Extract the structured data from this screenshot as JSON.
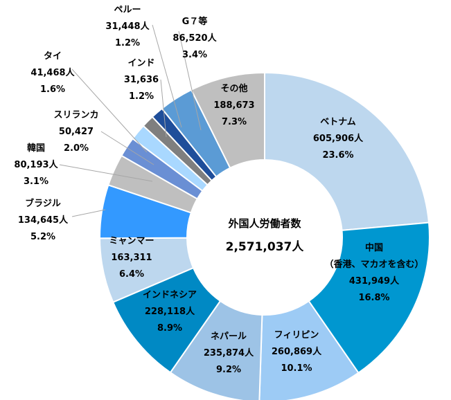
{
  "chart_data": {
    "type": "donut",
    "center_title": "外国人労働者数",
    "center_total": "2,571,037人",
    "slices": [
      {
        "name": "ベトナム",
        "sub": "",
        "value_label": "605,906人",
        "pct_label": "23.6%",
        "value": 605906,
        "color": "#BDD7EE",
        "text_color": "#000000"
      },
      {
        "name": "中国",
        "sub": "（香港、マカオを含む）",
        "value_label": "431,949人",
        "pct_label": "16.8%",
        "value": 431949,
        "color": "#0097D0",
        "text_color": "#000000"
      },
      {
        "name": "フィリピン",
        "sub": "",
        "value_label": "260,869人",
        "pct_label": "10.1%",
        "value": 260869,
        "color": "#9DCBF5",
        "text_color": "#000000"
      },
      {
        "name": "ネパール",
        "sub": "",
        "value_label": "235,874人",
        "pct_label": "9.2%",
        "value": 235874,
        "color": "#9DC3E6",
        "text_color": "#000000"
      },
      {
        "name": "インドネシア",
        "sub": "",
        "value_label": "228,118人",
        "pct_label": "8.9%",
        "value": 228118,
        "color": "#0089C4",
        "text_color": "#000000"
      },
      {
        "name": "ミャンマー",
        "sub": "",
        "value_label": "163,311",
        "pct_label": "6.4%",
        "value": 163311,
        "color": "#BDD7EE",
        "text_color": "#000000"
      },
      {
        "name": "ブラジル",
        "sub": "",
        "value_label": "134,645人",
        "pct_label": "5.2%",
        "value": 134645,
        "color": "#3399FF",
        "text_color": "#000000"
      },
      {
        "name": "韓国",
        "sub": "",
        "value_label": "80,193人",
        "pct_label": "3.1%",
        "value": 80193,
        "color": "#BFBFBF",
        "text_color": "#000000"
      },
      {
        "name": "スリランカ",
        "sub": "",
        "value_label": "50,427",
        "pct_label": "2.0%",
        "value": 50427,
        "color": "#6A8FD4",
        "text_color": "#000000"
      },
      {
        "name": "タイ",
        "sub": "",
        "value_label": "41,468人",
        "pct_label": "1.6%",
        "value": 41468,
        "color": "#A9D8FF",
        "text_color": "#000000"
      },
      {
        "name": "インド",
        "sub": "",
        "value_label": "31,636",
        "pct_label": "1.2%",
        "value": 31636,
        "color": "#7F7F7F",
        "text_color": "#000000"
      },
      {
        "name": "ペルー",
        "sub": "",
        "value_label": "31,448人",
        "pct_label": "1.2%",
        "value": 31448,
        "color": "#1F4E9A",
        "text_color": "#000000"
      },
      {
        "name": "G７等",
        "sub": "",
        "value_label": "86,520人",
        "pct_label": "3.4%",
        "value": 86520,
        "color": "#5B9BD5",
        "text_color": "#000000"
      },
      {
        "name": "その他",
        "sub": "",
        "value_label": "188,673",
        "pct_label": "7.3%",
        "value": 188673,
        "color": "#BFBFBF",
        "text_color": "#000000"
      }
    ]
  }
}
